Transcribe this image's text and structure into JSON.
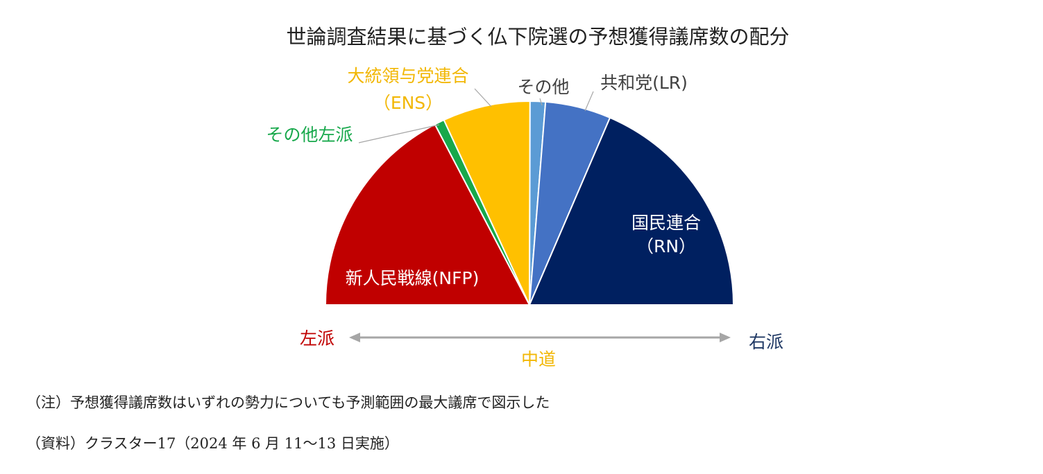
{
  "chart_data": {
    "type": "pie",
    "variant": "semicircle",
    "title": "世論調査結果に基づく仏下院選の予想獲得議席数の配分",
    "slices": [
      {
        "label_lines": [
          "新人民戦線(NFP)"
        ],
        "value": 200,
        "color": "#C00000",
        "label_color": "#ffffff"
      },
      {
        "label_lines": [
          "その他左派"
        ],
        "value": 9,
        "color": "#17A84B",
        "label_color": "#17A84B"
      },
      {
        "label_lines": [
          "大統領与党連合",
          "（ENS）"
        ],
        "value": 80,
        "color": "#FFC000",
        "label_color": "#F2B705"
      },
      {
        "label_lines": [
          "その他"
        ],
        "value": 14,
        "color": "#5B9BD5",
        "label_color": "#404040"
      },
      {
        "label_lines": [
          "共和党(LR)"
        ],
        "value": 60,
        "color": "#4472C4",
        "label_color": "#404040"
      },
      {
        "label_lines": [
          "国民連合",
          "（RN）"
        ],
        "value": 214,
        "color": "#002060",
        "label_color": "#ffffff"
      }
    ],
    "axis": {
      "left_label": "左派",
      "left_color": "#C00000",
      "center_label": "中道",
      "center_color": "#F2B705",
      "right_label": "右派",
      "right_color": "#1F3864"
    }
  },
  "notes": {
    "note": "（注）予想獲得議席数はいずれの勢力についても予測範囲の最大議席で図示した",
    "source": "（資料）クラスター17（2024 年 6 月 11〜13 日実施）"
  }
}
